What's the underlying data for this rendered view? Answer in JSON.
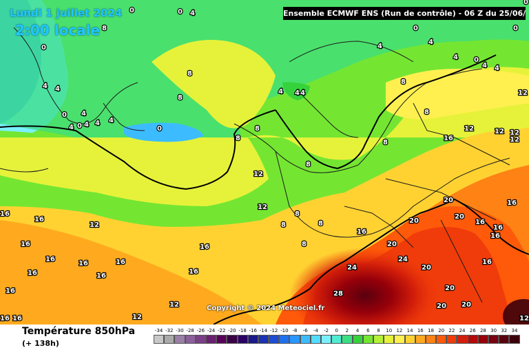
{
  "header": {
    "model_info": "Ensemble ECMWF ENS  (Run de contrôle)  -  06 Z du 25/06/2024",
    "date": "Lundi 1 juillet 2024",
    "time": "2:00 locale"
  },
  "footer": {
    "variable": "Température 850hPa",
    "lead_time": "(+ 138h)"
  },
  "copyright": "Copyright © 2024 Meteociel.fr",
  "legend": {
    "labels": [
      "-34",
      "-32",
      "-30",
      "-28",
      "-26",
      "-24",
      "-22",
      "-20",
      "-18",
      "-16",
      "-14",
      "-12",
      "-10",
      "-8",
      "-6",
      "-4",
      "-2",
      "0",
      "2",
      "4",
      "6",
      "8",
      "10",
      "12",
      "14",
      "16",
      "18",
      "20",
      "22",
      "24",
      "26",
      "28",
      "30",
      "32",
      "34"
    ],
    "colors": [
      "#c8c8c8",
      "#aaaaaa",
      "#9a7fa6",
      "#8a5f9a",
      "#7a3f86",
      "#6a2070",
      "#5a005a",
      "#3a0046",
      "#2a0064",
      "#1a1a8a",
      "#1a32b4",
      "#1e4cd2",
      "#2070ee",
      "#2a96ff",
      "#3cbcff",
      "#52dcff",
      "#7af0ff",
      "#50ecd0",
      "#3cde82",
      "#36d23c",
      "#74e632",
      "#b4f034",
      "#e6f23a",
      "#fff050",
      "#ffd232",
      "#ffaa1e",
      "#ff8214",
      "#ff5a0a",
      "#f03c0a",
      "#d21e0a",
      "#b40a0a",
      "#96000a",
      "#780010",
      "#5a000e",
      "#3c000a"
    ]
  },
  "isotherm_labels": [
    "0",
    "4",
    "0",
    "0",
    "8",
    "0",
    "0",
    "4",
    "4",
    "4",
    "0",
    "4",
    "0",
    "4",
    "4",
    "4",
    "0",
    "8",
    "8",
    "4",
    "4",
    "4",
    "4",
    "4",
    "4",
    "0",
    "4",
    "4",
    "0",
    "8",
    "8",
    "8",
    "8",
    "12",
    "8",
    "8",
    "12",
    "12",
    "12",
    "16",
    "12",
    "16",
    "12",
    "12",
    "16",
    "16",
    "8",
    "12",
    "8",
    "8",
    "20",
    "8",
    "16",
    "16",
    "16",
    "20",
    "20",
    "20",
    "20",
    "16",
    "16",
    "16",
    "16",
    "16",
    "16",
    "16",
    "24",
    "24",
    "16",
    "16",
    "16",
    "20",
    "28",
    "20",
    "20",
    "12",
    "12",
    "16",
    "16",
    "12",
    "16"
  ]
}
